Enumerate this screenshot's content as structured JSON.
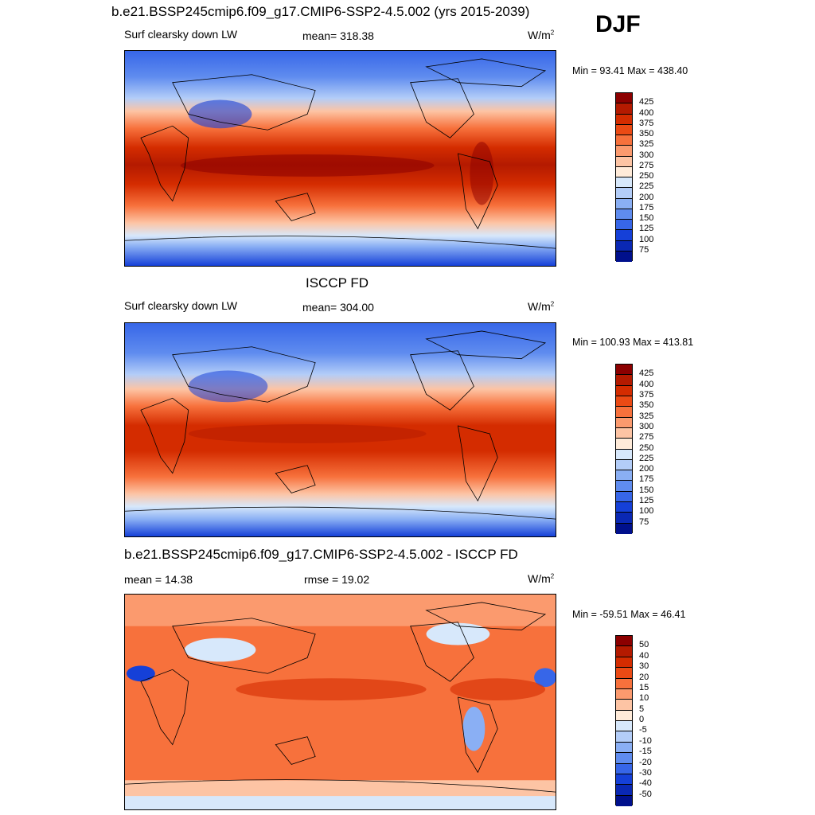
{
  "header": {
    "title": "b.e21.BSSP245cmip6.f09_g17.CMIP6-SSP2-4.5.002 (yrs 2015-2039)",
    "season": "DJF"
  },
  "panels": [
    {
      "variable": "Surf clearsky down LW",
      "mean_text": "mean= 318.38",
      "units_base": "W/m",
      "units_exp": "2",
      "minmax": "Min =  93.41 Max = 438.40",
      "colorbar": {
        "labels": [
          "425",
          "400",
          "375",
          "350",
          "325",
          "300",
          "275",
          "250",
          "225",
          "200",
          "175",
          "150",
          "125",
          "100",
          "75"
        ],
        "colors": [
          "#8c0000",
          "#b41a00",
          "#d42c00",
          "#eb4a14",
          "#f7713c",
          "#fb9a6e",
          "#fdc4a4",
          "#ffebd9",
          "#d7e8fb",
          "#b3cdf8",
          "#8aaff4",
          "#5f8cef",
          "#3766e8",
          "#1540d8",
          "#0a28b4",
          "#00108c"
        ]
      }
    },
    {
      "title": "ISCCP FD",
      "variable": "Surf clearsky down LW",
      "mean_text": "mean= 304.00",
      "units_base": "W/m",
      "units_exp": "2",
      "minmax": "Min = 100.93 Max = 413.81",
      "colorbar": {
        "labels": [
          "425",
          "400",
          "375",
          "350",
          "325",
          "300",
          "275",
          "250",
          "225",
          "200",
          "175",
          "150",
          "125",
          "100",
          "75"
        ],
        "colors": [
          "#8c0000",
          "#b41a00",
          "#d42c00",
          "#eb4a14",
          "#f7713c",
          "#fb9a6e",
          "#fdc4a4",
          "#ffebd9",
          "#d7e8fb",
          "#b3cdf8",
          "#8aaff4",
          "#5f8cef",
          "#3766e8",
          "#1540d8",
          "#0a28b4",
          "#00108c"
        ]
      }
    },
    {
      "title": "b.e21.BSSP245cmip6.f09_g17.CMIP6-SSP2-4.5.002 - ISCCP FD",
      "mean_text": "mean =  14.38",
      "rmse_text": "rmse =  19.02",
      "units_base": "W/m",
      "units_exp": "2",
      "minmax": "Min = -59.51 Max =  46.41",
      "colorbar": {
        "labels": [
          "50",
          "40",
          "30",
          "20",
          "15",
          "10",
          "5",
          "0",
          "-5",
          "-10",
          "-15",
          "-20",
          "-30",
          "-40",
          "-50"
        ],
        "colors": [
          "#8c0000",
          "#b41a00",
          "#d42c00",
          "#eb4a14",
          "#f7713c",
          "#fb9a6e",
          "#fdc4a4",
          "#ffebd9",
          "#d7e8fb",
          "#b3cdf8",
          "#8aaff4",
          "#5f8cef",
          "#3766e8",
          "#1540d8",
          "#0a28b4",
          "#00108c"
        ]
      }
    }
  ],
  "chart_data": [
    {
      "type": "heatmap",
      "title": "b.e21.BSSP245cmip6.f09_g17.CMIP6-SSP2-4.5.002 (yrs 2015-2039)",
      "variable": "Surf clearsky down LW",
      "season": "DJF",
      "mean": 318.38,
      "min": 93.41,
      "max": 438.4,
      "units": "W/m2",
      "contour_levels": [
        75,
        100,
        125,
        150,
        175,
        200,
        225,
        250,
        275,
        300,
        325,
        350,
        375,
        400,
        425
      ],
      "projection": "cylindrical equidistant, global"
    },
    {
      "type": "heatmap",
      "title": "ISCCP FD",
      "variable": "Surf clearsky down LW",
      "season": "DJF",
      "mean": 304.0,
      "min": 100.93,
      "max": 413.81,
      "units": "W/m2",
      "contour_levels": [
        75,
        100,
        125,
        150,
        175,
        200,
        225,
        250,
        275,
        300,
        325,
        350,
        375,
        400,
        425
      ],
      "projection": "cylindrical equidistant, global"
    },
    {
      "type": "heatmap",
      "title": "b.e21.BSSP245cmip6.f09_g17.CMIP6-SSP2-4.5.002 - ISCCP FD",
      "season": "DJF",
      "mean": 14.38,
      "rmse": 19.02,
      "min": -59.51,
      "max": 46.41,
      "units": "W/m2",
      "contour_levels": [
        -50,
        -40,
        -30,
        -20,
        -15,
        -10,
        -5,
        0,
        5,
        10,
        15,
        20,
        30,
        40,
        50
      ],
      "projection": "cylindrical equidistant, global"
    }
  ]
}
